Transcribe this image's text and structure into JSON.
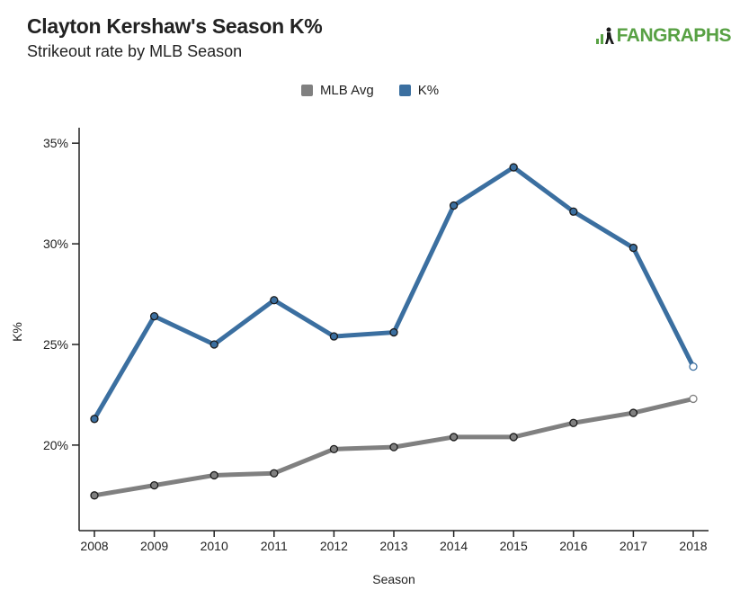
{
  "header": {
    "title": "Clayton Kershaw's Season K%",
    "subtitle": "Strikeout rate by MLB Season",
    "logo_text": "FANGRAPHS",
    "logo_color": "#58a144"
  },
  "chart_data": {
    "type": "line",
    "title": "Clayton Kershaw's Season K%",
    "subtitle": "Strikeout rate by MLB Season",
    "xlabel": "Season",
    "ylabel": "K%",
    "x": [
      2008,
      2009,
      2010,
      2011,
      2012,
      2013,
      2014,
      2015,
      2016,
      2017,
      2018
    ],
    "ylim": [
      15.75,
      35.5
    ],
    "yticks": [
      20,
      25,
      30,
      35
    ],
    "ytick_labels": [
      "20%",
      "25%",
      "30%",
      "35%"
    ],
    "legend_position": "top-center",
    "series": [
      {
        "name": "MLB Avg",
        "color": "#808080",
        "values": [
          17.5,
          18.0,
          18.5,
          18.6,
          19.8,
          19.9,
          20.4,
          20.4,
          21.1,
          21.6,
          22.3
        ],
        "last_point_hollow": true
      },
      {
        "name": "K%",
        "color": "#3b6fa0",
        "values": [
          21.3,
          26.4,
          25.0,
          27.2,
          25.4,
          25.6,
          31.9,
          33.8,
          31.6,
          29.8,
          23.9
        ],
        "last_point_hollow": true
      }
    ]
  }
}
